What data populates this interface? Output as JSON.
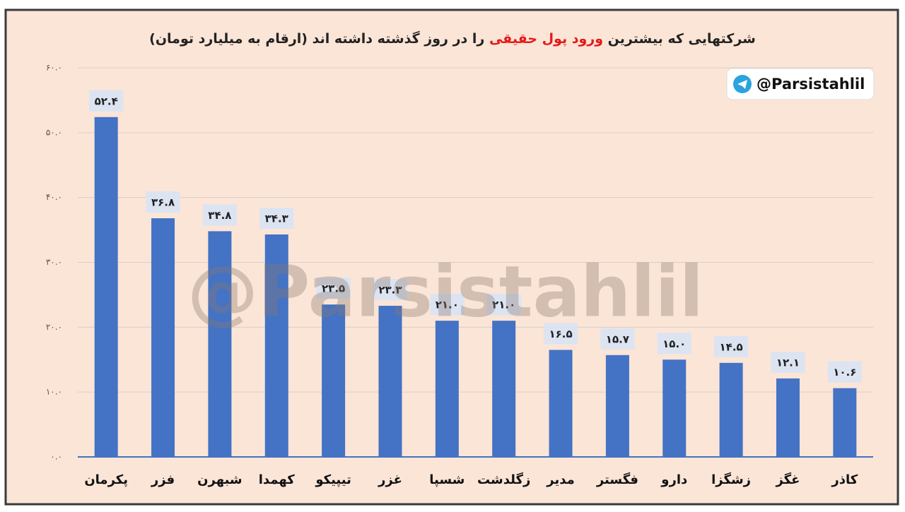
{
  "chart_data": {
    "type": "bar",
    "title_parts": [
      "شرکتهایی که بیشترین",
      "ورود پول حقیقی",
      "را در روز گذشته داشته اند (ارقام به میلیارد تومان)"
    ],
    "title_highlight_color": "#e31b1b",
    "badge": "@Parsistahlil",
    "watermark": "@Parsistahlil",
    "categories": [
      "پکرمان",
      "فزر",
      "شبهرن",
      "کهمدا",
      "تیپیکو",
      "غزر",
      "شسپا",
      "زگلدشت",
      "مدیر",
      "فگستر",
      "دارو",
      "زشگزا",
      "غگز",
      "کاذر"
    ],
    "values": [
      52.4,
      36.8,
      34.8,
      34.3,
      23.5,
      23.3,
      21.0,
      21.0,
      16.5,
      15.7,
      15.0,
      14.5,
      12.1,
      10.6
    ],
    "value_labels": [
      "۵۲.۴",
      "۳۶.۸",
      "۳۴.۸",
      "۳۴.۳",
      "۲۳.۵",
      "۲۳.۳",
      "۲۱.۰",
      "۲۱.۰",
      "۱۶.۵",
      "۱۵.۷",
      "۱۵.۰",
      "۱۴.۵",
      "۱۲.۱",
      "۱۰.۶"
    ],
    "color": "#4472c4",
    "ylim": [
      0,
      60
    ],
    "yticks": [
      {
        "value": 0,
        "label": "۰.۰"
      },
      {
        "value": 10,
        "label": "۱۰.۰"
      },
      {
        "value": 20,
        "label": "۲۰.۰"
      },
      {
        "value": 30,
        "label": "۳۰.۰"
      },
      {
        "value": 40,
        "label": "۴۰.۰"
      },
      {
        "value": 50,
        "label": "۵۰.۰"
      },
      {
        "value": 60,
        "label": "۶۰.۰"
      }
    ],
    "grid": true
  }
}
